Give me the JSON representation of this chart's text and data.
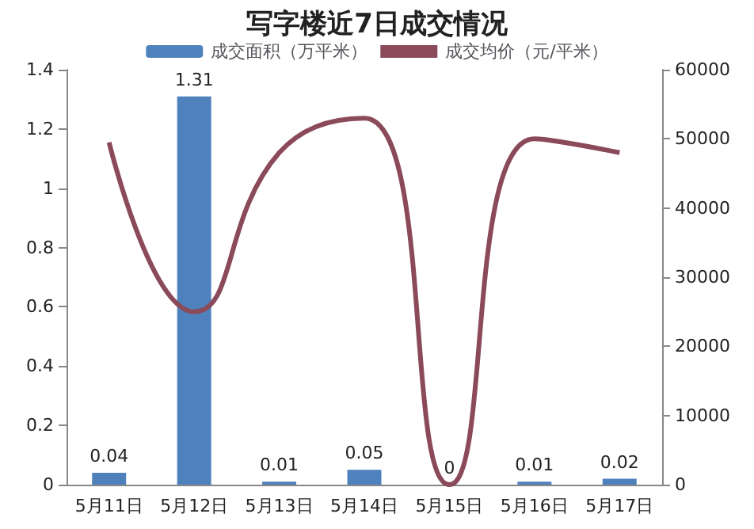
{
  "chart_data": {
    "type": "bar",
    "title": "写字楼近7日成交情况",
    "categories": [
      "5月11日",
      "5月12日",
      "5月13日",
      "5月14日",
      "5月15日",
      "5月16日",
      "5月17日"
    ],
    "series": [
      {
        "name": "成交面积（万平米）",
        "color": "#4f81bd",
        "values": [
          0.04,
          1.31,
          0.01,
          0.05,
          0,
          0.01,
          0.02
        ],
        "data_labels": true
      },
      {
        "name": "成交均价（元/平米）",
        "type": "line",
        "axis": "y2",
        "color": "#8b4a5a",
        "values": [
          49500,
          25000,
          48000,
          53000,
          0,
          50000,
          48000
        ]
      }
    ],
    "ylim": [
      0,
      1.4
    ],
    "yticks": [
      0,
      0.2,
      0.4,
      0.6,
      0.8,
      1,
      1.2,
      1.4
    ],
    "y2lim": [
      0,
      60000
    ],
    "y2ticks": [
      0,
      10000,
      20000,
      30000,
      40000,
      50000,
      60000
    ],
    "grid": false,
    "legend": "top",
    "marker": "none"
  }
}
